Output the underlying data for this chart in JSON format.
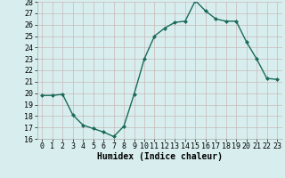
{
  "x": [
    0,
    1,
    2,
    3,
    4,
    5,
    6,
    7,
    8,
    9,
    10,
    11,
    12,
    13,
    14,
    15,
    16,
    17,
    18,
    19,
    20,
    21,
    22,
    23
  ],
  "y": [
    19.8,
    19.8,
    19.9,
    18.1,
    17.2,
    16.9,
    16.6,
    16.2,
    17.1,
    19.9,
    23.0,
    25.0,
    25.7,
    26.2,
    26.3,
    28.1,
    27.2,
    26.5,
    26.3,
    26.3,
    24.5,
    23.0,
    21.3,
    21.2
  ],
  "line_color": "#1a6b5a",
  "marker": "D",
  "markersize": 2.0,
  "linewidth": 1.0,
  "bg_color": "#d8eeee",
  "grid_color": "#b8d8d8",
  "xlabel": "Humidex (Indice chaleur)",
  "ylim": [
    16,
    28
  ],
  "xlim": [
    -0.5,
    23.5
  ],
  "yticks": [
    16,
    17,
    18,
    19,
    20,
    21,
    22,
    23,
    24,
    25,
    26,
    27,
    28
  ],
  "xticks": [
    0,
    1,
    2,
    3,
    4,
    5,
    6,
    7,
    8,
    9,
    10,
    11,
    12,
    13,
    14,
    15,
    16,
    17,
    18,
    19,
    20,
    21,
    22,
    23
  ],
  "xlabel_fontsize": 7,
  "tick_fontsize": 6,
  "spine_color": "#aaaaaa"
}
